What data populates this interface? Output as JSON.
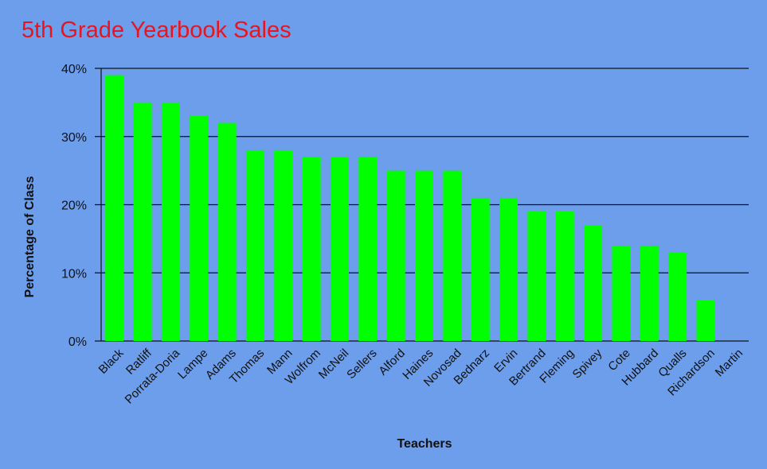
{
  "chart_data": {
    "type": "bar",
    "title": "5th Grade Yearbook Sales",
    "xlabel": "Teachers",
    "ylabel": "Percentage of Class",
    "ylim": [
      0,
      40
    ],
    "yticks": [
      "0%",
      "10%",
      "20%",
      "30%",
      "40%"
    ],
    "grid": true,
    "colors": {
      "bar": "#00ff00",
      "title": "#e8141f",
      "background": "#6d9eeb"
    },
    "categories": [
      "Black",
      "Ratliff",
      "Porrata-Doria",
      "Lampe",
      "Adams",
      "Thomas",
      "Mann",
      "Wolfrom",
      "McNeil",
      "Sellers",
      "Alford",
      "Haines",
      "Novosad",
      "Bednarz",
      "Ervin",
      "Bertrand",
      "Fleming",
      "Spivey",
      "Cote",
      "Hubbard",
      "Qualls",
      "Richardson",
      "Martin"
    ],
    "values": [
      39,
      35,
      35,
      33,
      32,
      28,
      28,
      27,
      27,
      27,
      25,
      25,
      25,
      21,
      21,
      19,
      19,
      17,
      14,
      14,
      13,
      6,
      0
    ]
  }
}
